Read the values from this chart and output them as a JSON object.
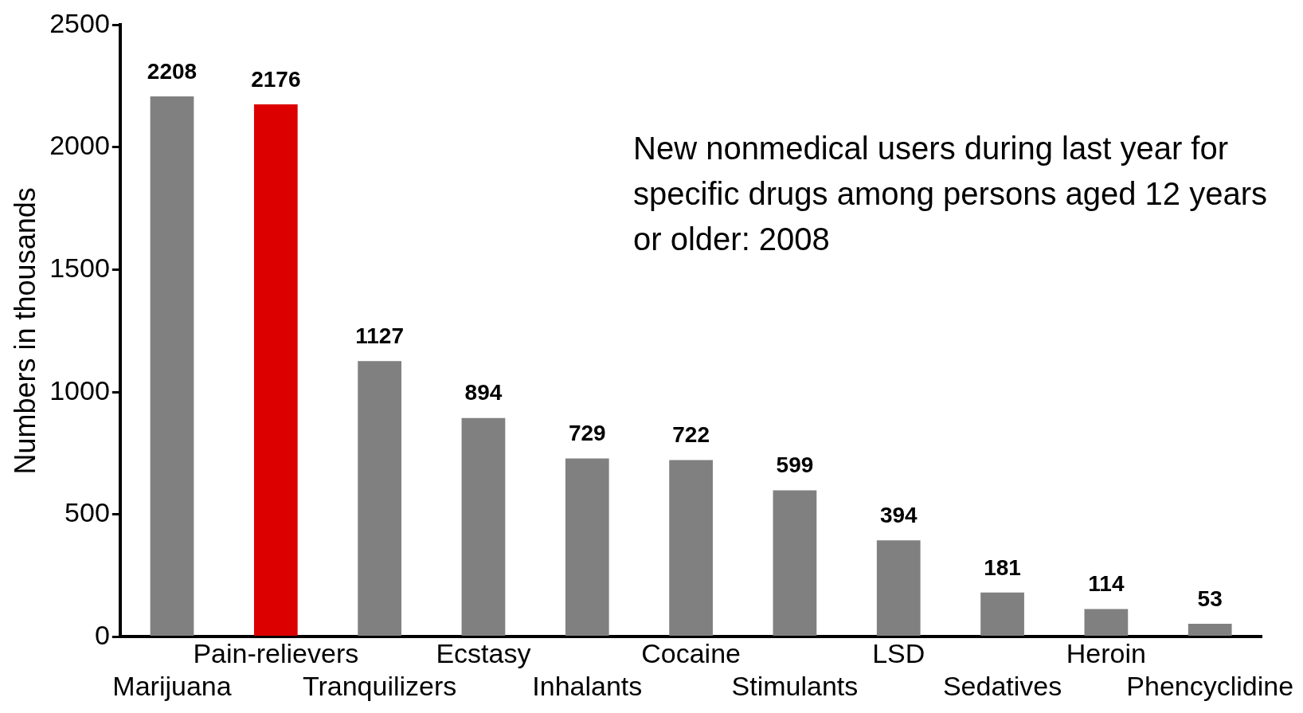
{
  "chart_data": {
    "type": "bar",
    "title": "New nonmedical users during last year for specific drugs among persons aged 12 years or older: 2008",
    "ylabel": "Numbers in thousands",
    "categories": [
      "Marijuana",
      "Pain-relievers",
      "Tranquilizers",
      "Ecstasy",
      "Inhalants",
      "Cocaine",
      "Stimulants",
      "LSD",
      "Sedatives",
      "Heroin",
      "Phencyclidine"
    ],
    "values": [
      2208,
      2176,
      1127,
      894,
      729,
      722,
      599,
      394,
      181,
      114,
      53
    ],
    "colors": [
      "#808080",
      "#dd0000",
      "#808080",
      "#808080",
      "#808080",
      "#808080",
      "#808080",
      "#808080",
      "#808080",
      "#808080",
      "#808080"
    ],
    "ylim": [
      0,
      2500
    ],
    "yticks": [
      0,
      500,
      1000,
      1500,
      2000,
      2500
    ],
    "grid": false,
    "legend": false,
    "data_labels": true
  }
}
